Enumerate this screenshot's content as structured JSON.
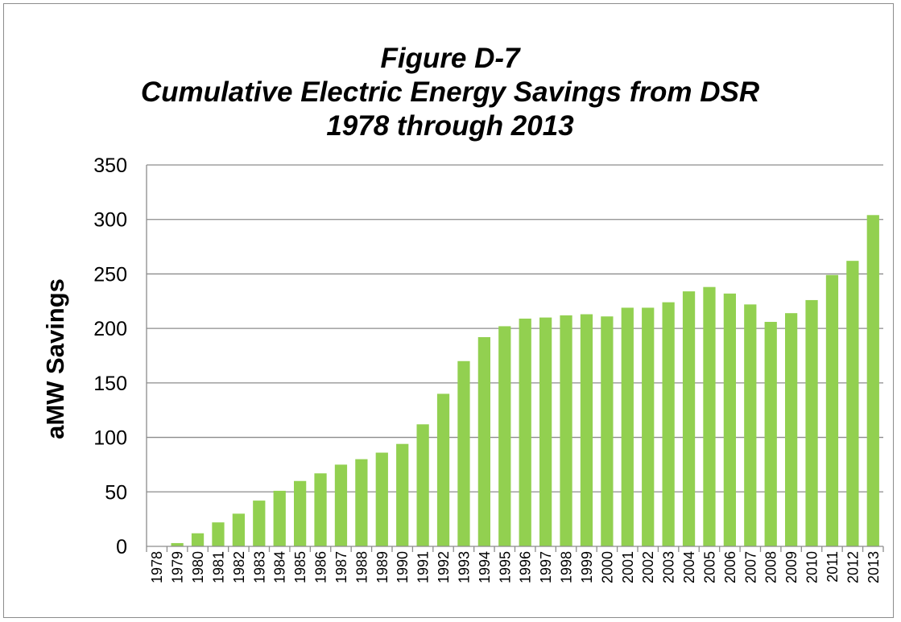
{
  "chart_data": {
    "type": "bar",
    "title": [
      "Figure D-7",
      "Cumulative Electric Energy Savings from DSR",
      "1978 through 2013"
    ],
    "xlabel": "",
    "ylabel": "aMW Savings",
    "ylim": [
      0,
      350
    ],
    "yticks": [
      "0",
      "50",
      "100",
      "150",
      "200",
      "250",
      "300",
      "350"
    ],
    "grid": true,
    "legend": "none",
    "bar_color": "#92d050",
    "categories": [
      "1978",
      "1979",
      "1980",
      "1981",
      "1982",
      "1983",
      "1984",
      "1985",
      "1986",
      "1987",
      "1988",
      "1989",
      "1990",
      "1991",
      "1992",
      "1993",
      "1994",
      "1995",
      "1996",
      "1997",
      "1998",
      "1999",
      "2000",
      "2001",
      "2002",
      "2003",
      "2004",
      "2005",
      "2006",
      "2007",
      "2008",
      "2009",
      "2010",
      "2011",
      "2012",
      "2013"
    ],
    "values": [
      0,
      3,
      12,
      22,
      30,
      42,
      51,
      60,
      67,
      75,
      80,
      86,
      94,
      112,
      140,
      170,
      192,
      202,
      209,
      210,
      212,
      213,
      211,
      219,
      219,
      224,
      234,
      238,
      232,
      222,
      206,
      214,
      226,
      249,
      262,
      304
    ]
  }
}
